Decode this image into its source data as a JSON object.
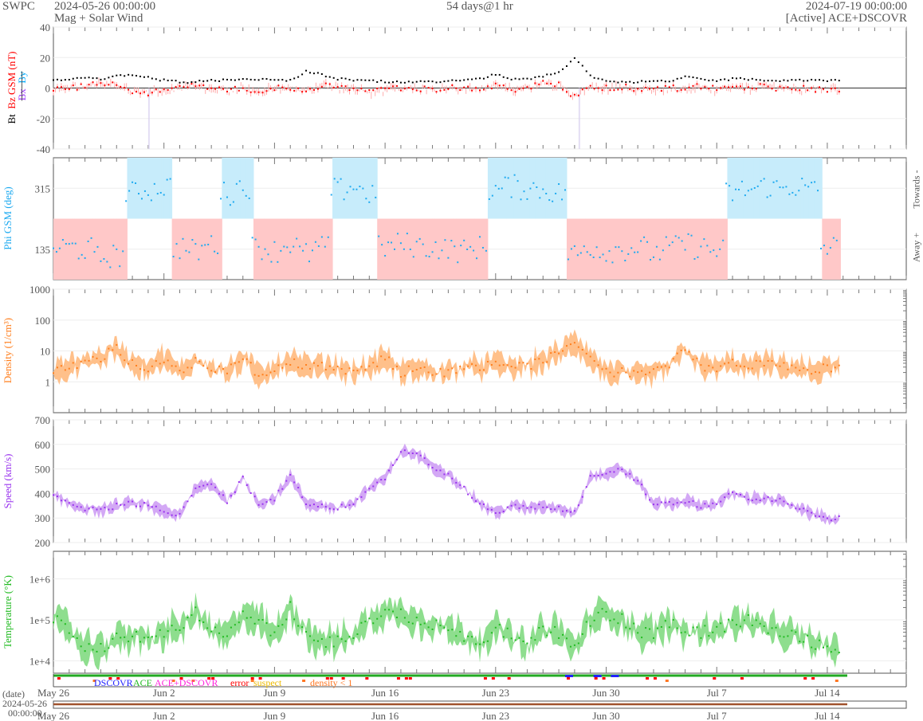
{
  "header": {
    "org": "SWPC",
    "start": "2024-05-26 00:00:00",
    "product": "Mag + Solar Wind",
    "span": "54 days@1 hr",
    "end": "2024-07-19 00:00:00",
    "source": "[Active] ACE+DSCOVR"
  },
  "colors": {
    "bt": "#000000",
    "bz": "#ff0000",
    "bx": "#9933ff",
    "by": "#00aaff",
    "phi": "#1eaaf0",
    "density": "#ff7f1e",
    "speed": "#9933ee",
    "temp": "#22bb22",
    "status": "#22aa22",
    "date": "#a0522d"
  },
  "chart_data": [
    {
      "type": "line",
      "title": "Bt / Bz GSM (nT)",
      "labels": {
        "bt": "Bt",
        "bz": "Bz GSM (nT)",
        "bx": "Bx",
        "by": "By"
      },
      "ylim": [
        -40,
        40
      ],
      "yticks": [
        "40",
        "20",
        "0",
        "-20",
        "-40"
      ],
      "ytick_values": [
        40,
        20,
        0,
        -20,
        -40
      ],
      "x_unit": "days since 2024-05-26",
      "series": [
        {
          "name": "Bt",
          "values": [
            5,
            6,
            7,
            6,
            8,
            9,
            7,
            5,
            4,
            4,
            5,
            5,
            6,
            6,
            6,
            5,
            11,
            9,
            6,
            5,
            5,
            4,
            4,
            4,
            4,
            5,
            5,
            6,
            9,
            6,
            6,
            8,
            10,
            20,
            8,
            5,
            4,
            4,
            4,
            5,
            7,
            6,
            5,
            6,
            6,
            5,
            5,
            5,
            5,
            5
          ]
        },
        {
          "name": "Bz GSM",
          "values": [
            -1,
            0,
            1,
            3,
            2,
            -2,
            -3,
            -2,
            0,
            3,
            -1,
            -2,
            1,
            -3,
            0,
            -1,
            -2,
            2,
            0,
            -1,
            -3,
            -1,
            0,
            0,
            -1,
            1,
            -1,
            0,
            1,
            -1,
            0,
            3,
            2,
            -5,
            0,
            0,
            1,
            -1,
            -1,
            0,
            0,
            1,
            -1,
            0,
            0,
            1,
            0,
            0,
            -1,
            -1
          ]
        }
      ]
    },
    {
      "type": "scatter",
      "title": "Phi GSM (deg)",
      "ylabel": "Phi GSM (deg)",
      "right_labels": {
        "towards": "Towards -",
        "away": "Away +"
      },
      "ylim": [
        45,
        405
      ],
      "yticks": [
        "315",
        "135"
      ],
      "ytick_values": [
        315,
        135
      ],
      "values": [
        140,
        140,
        135,
        110,
        115,
        300,
        310,
        320,
        140,
        130,
        150,
        300,
        320,
        140,
        130,
        150,
        120,
        140,
        310,
        320,
        300,
        140,
        150,
        145,
        140,
        135,
        130,
        140,
        310,
        320,
        315,
        310,
        300,
        120,
        140,
        130,
        135,
        140,
        125,
        140,
        150,
        140,
        130,
        300,
        310,
        320,
        315,
        320,
        310,
        140
      ]
    },
    {
      "type": "line",
      "title": "Density (1/cm³)",
      "ylabel": "Density (1/cm³)",
      "scale": "log",
      "ylim": [
        0.1,
        1000
      ],
      "yticks": [
        "1000",
        "100",
        "10",
        "1"
      ],
      "ytick_values": [
        1000,
        100,
        10,
        1
      ],
      "values": [
        2,
        3,
        5,
        6,
        12,
        4,
        3,
        6,
        2,
        5,
        3,
        2,
        6,
        1.5,
        3,
        5,
        3,
        3,
        3,
        2,
        3,
        6,
        2,
        3,
        2,
        2,
        3,
        3,
        4,
        3,
        3,
        5,
        8,
        20,
        6,
        2,
        2,
        1.5,
        2,
        3,
        12,
        3,
        3,
        4,
        3,
        4,
        3,
        3,
        2,
        3
      ]
    },
    {
      "type": "line",
      "title": "Speed (km/s)",
      "ylabel": "Speed (km/s)",
      "ylim": [
        200,
        700
      ],
      "yticks": [
        "700",
        "600",
        "500",
        "400",
        "300",
        "200"
      ],
      "ytick_values": [
        700,
        600,
        500,
        400,
        300,
        200
      ],
      "values": [
        390,
        360,
        340,
        330,
        350,
        360,
        350,
        330,
        310,
        420,
        440,
        370,
        460,
        360,
        380,
        470,
        360,
        350,
        340,
        360,
        420,
        460,
        570,
        560,
        510,
        480,
        420,
        360,
        320,
        350,
        340,
        350,
        340,
        320,
        470,
        480,
        500,
        450,
        360,
        360,
        370,
        350,
        360,
        400,
        380,
        380,
        370,
        340,
        320,
        300
      ]
    },
    {
      "type": "line",
      "title": "Temperature (°K)",
      "ylabel": "Temperature (°K)",
      "scale": "log",
      "ylim": [
        5000,
        4700000
      ],
      "yticks": [
        "1e+6",
        "1e+5",
        "1e+4"
      ],
      "ytick_values": [
        1000000,
        100000,
        10000
      ],
      "values": [
        100000,
        60000,
        20000,
        20000,
        35000,
        40000,
        30000,
        50000,
        60000,
        150000,
        50000,
        40000,
        150000,
        100000,
        40000,
        200000,
        50000,
        30000,
        30000,
        40000,
        100000,
        150000,
        150000,
        100000,
        80000,
        60000,
        40000,
        30000,
        60000,
        40000,
        20000,
        60000,
        50000,
        20000,
        100000,
        150000,
        100000,
        50000,
        50000,
        80000,
        50000,
        50000,
        60000,
        80000,
        100000,
        60000,
        50000,
        40000,
        30000,
        20000
      ]
    }
  ],
  "x_axis": {
    "ticks": [
      "May 26",
      "Jun 2",
      "Jun 9",
      "Jun 16",
      "Jun 23",
      "Jun 30",
      "Jul 7",
      "Jul 14"
    ],
    "tick_days": [
      0,
      7,
      14,
      21,
      28,
      35,
      42,
      49
    ],
    "total_days": 54
  },
  "status": {
    "legend": {
      "dscovr": "DSCOVR",
      "ace": "ACE",
      "both": "ACE+DSCOVR",
      "error": "error",
      "suspect": "suspect",
      "density": "density < 1"
    }
  },
  "date_panel": {
    "label": "(date)",
    "date": "2024-05-26",
    "time": "00:00:00"
  }
}
